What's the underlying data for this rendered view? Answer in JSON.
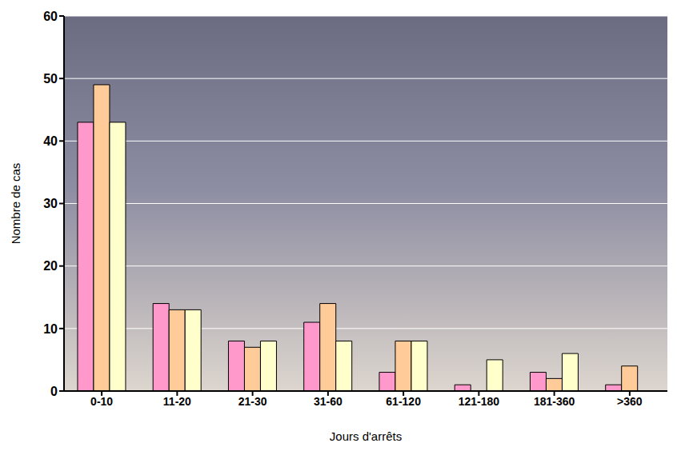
{
  "chart_data": {
    "type": "bar",
    "x_label": "Jours d'arrêts",
    "y_label": "Nombre de cas",
    "categories": [
      "0-10",
      "11-20",
      "21-30",
      "31-60",
      "61-120",
      "121-180",
      "181-360",
      ">360"
    ],
    "series": [
      {
        "color": "#ff99cc",
        "values": [
          43,
          14,
          8,
          11,
          3,
          1,
          3,
          1
        ]
      },
      {
        "color": "#ffcc99",
        "values": [
          49,
          13,
          7,
          14,
          8,
          0,
          2,
          4
        ]
      },
      {
        "color": "#ffffcc",
        "values": [
          43,
          13,
          8,
          8,
          8,
          5,
          6,
          0
        ]
      }
    ],
    "ylim": [
      0,
      60
    ],
    "yticks": [
      0,
      10,
      20,
      30,
      40,
      50,
      60
    ],
    "grid": true
  }
}
